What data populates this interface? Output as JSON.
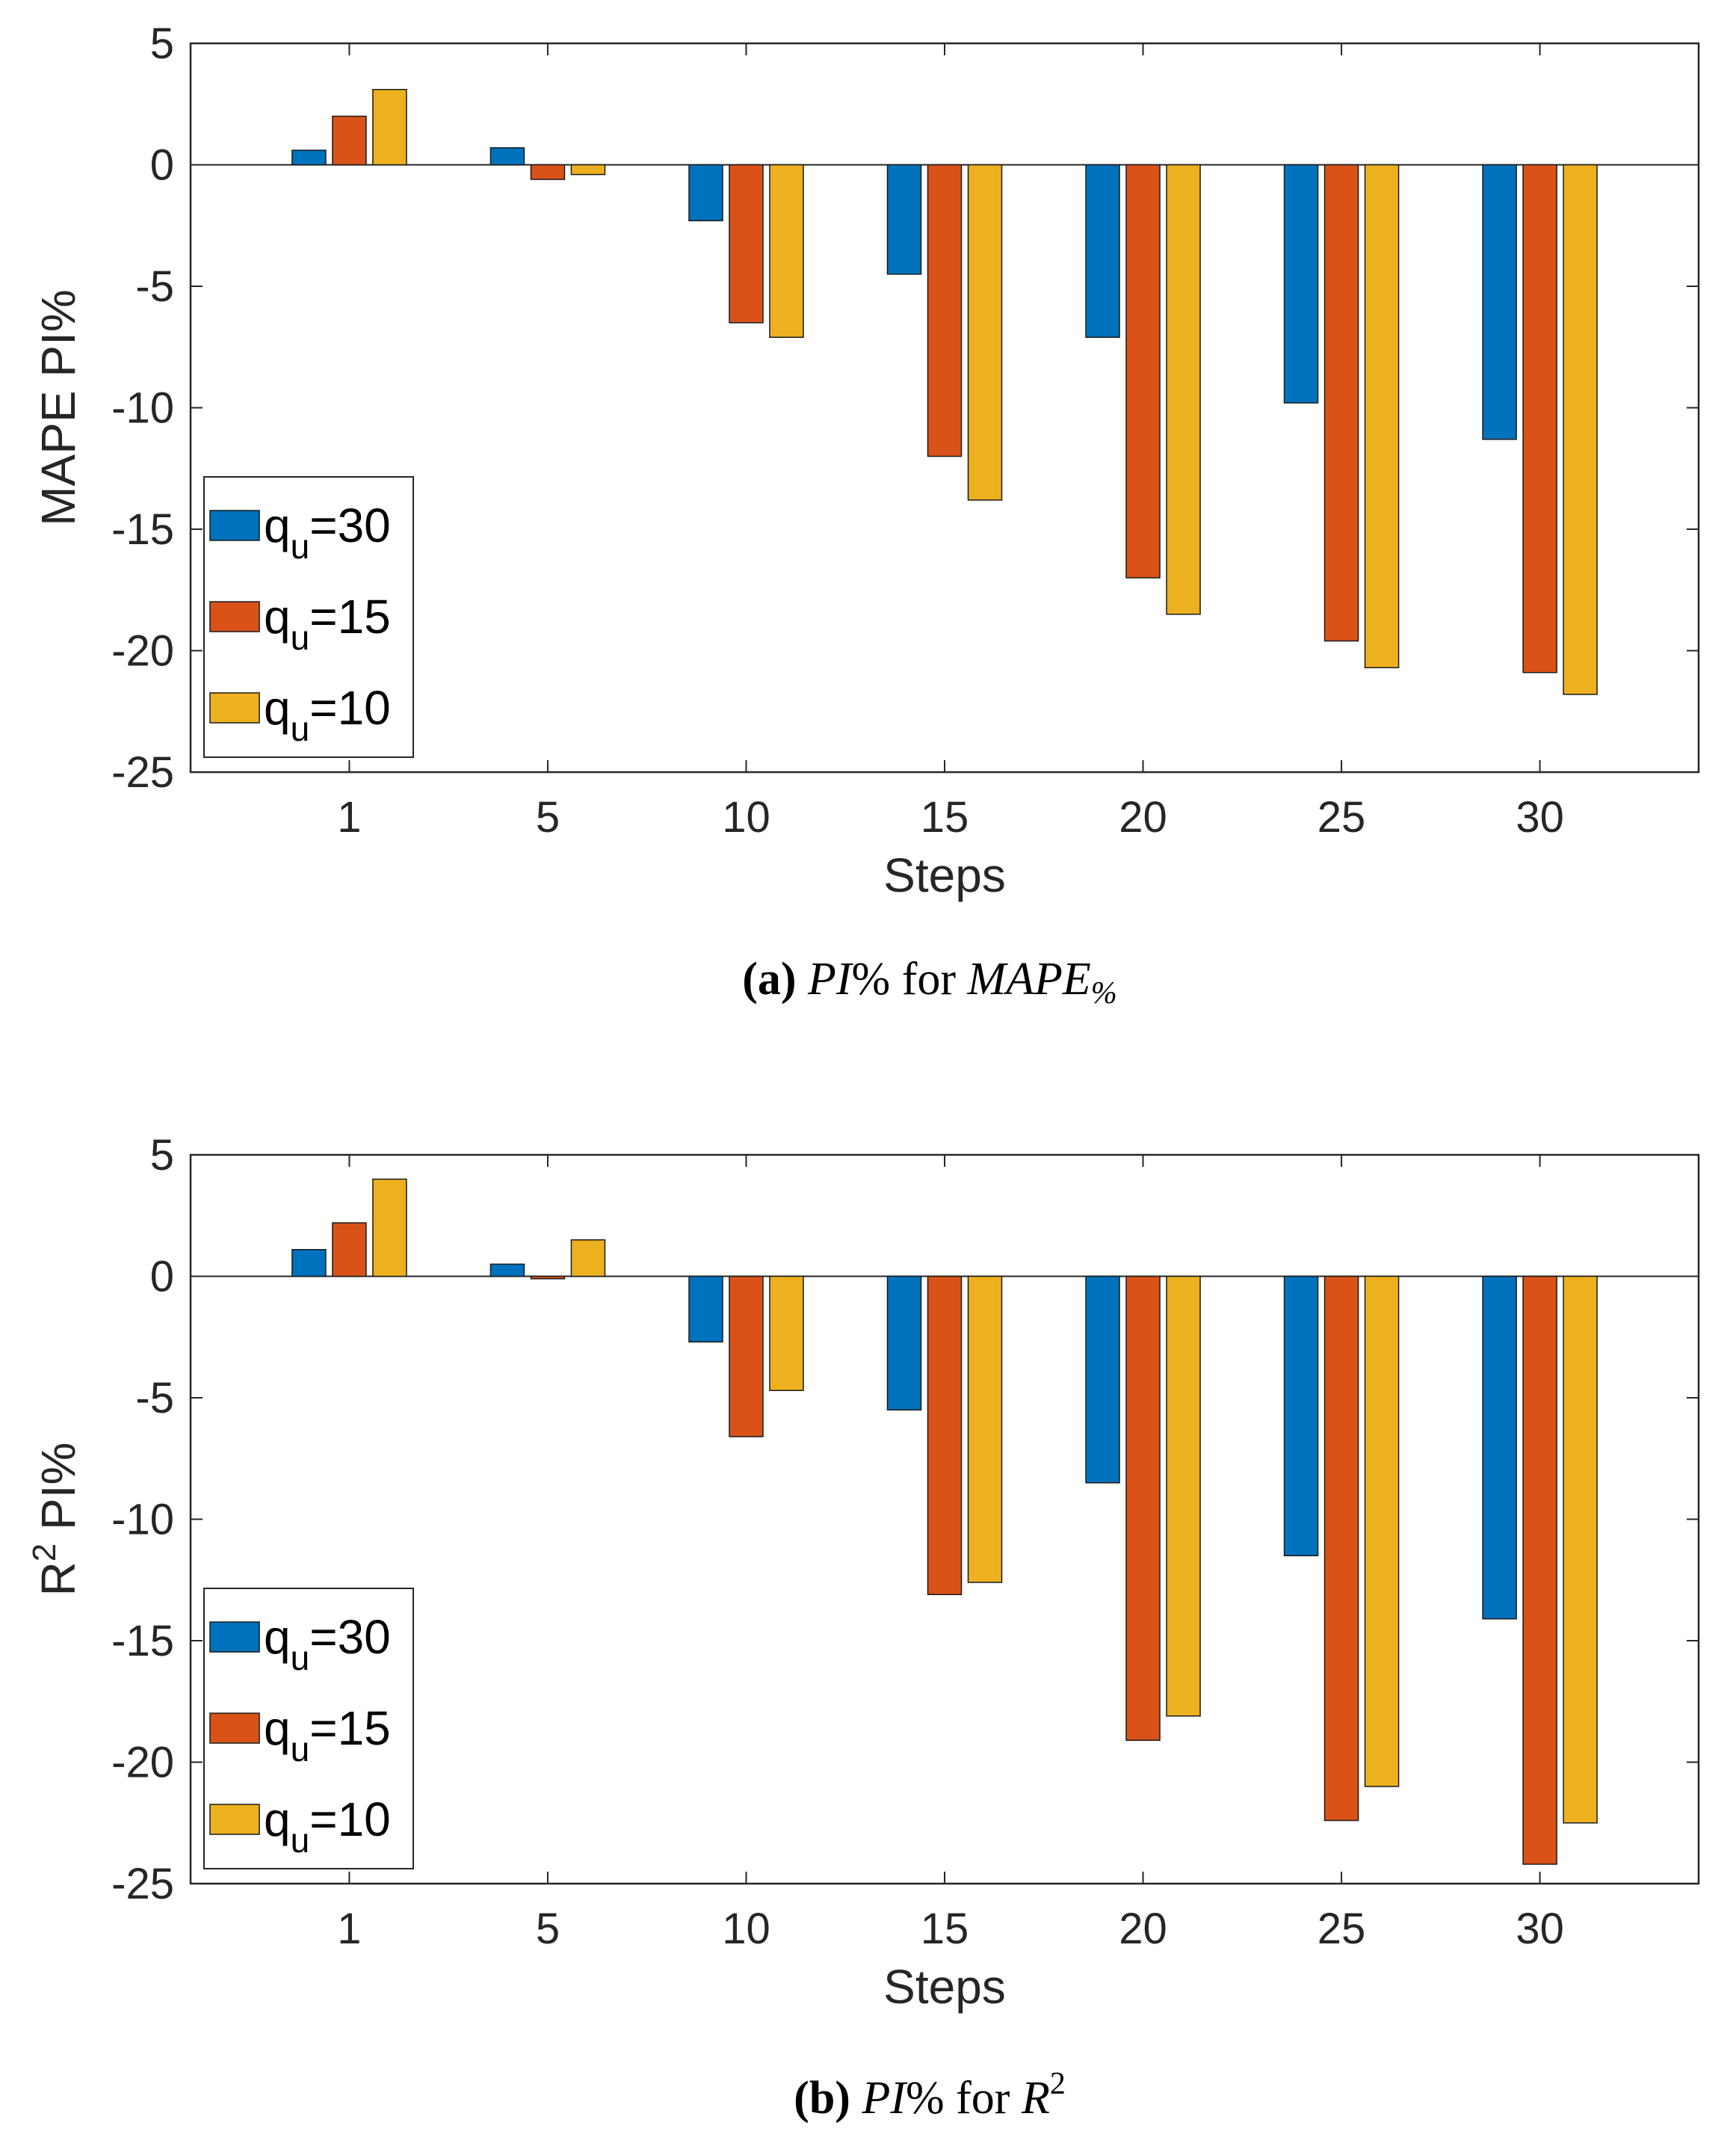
{
  "chart_data": [
    {
      "id": "a",
      "type": "bar",
      "categories": [
        "1",
        "5",
        "10",
        "15",
        "20",
        "25",
        "30"
      ],
      "xlabel": "Steps",
      "ylabel": "MAPE PI%",
      "ylabel_parts": {
        "main": "MAPE PI%",
        "sup": ""
      },
      "ylim": [
        -25,
        5
      ],
      "yticks": [
        5,
        0,
        -5,
        -10,
        -15,
        -20,
        -25
      ],
      "legend_position": "bottom-left",
      "series": [
        {
          "name": "q_u=30",
          "label_main": "q",
          "label_sub": "u",
          "label_tail": "=30",
          "color": "#0072BD",
          "values": [
            0.6,
            0.7,
            -2.3,
            -4.5,
            -7.1,
            -9.8,
            -11.3
          ]
        },
        {
          "name": "q_u=15",
          "label_main": "q",
          "label_sub": "u",
          "label_tail": "=15",
          "color": "#D95319",
          "values": [
            2.0,
            -0.6,
            -6.5,
            -12.0,
            -17.0,
            -19.6,
            -20.9
          ]
        },
        {
          "name": "q_u=10",
          "label_main": "q",
          "label_sub": "u",
          "label_tail": "=10",
          "color": "#EDB120",
          "values": [
            3.1,
            -0.4,
            -7.1,
            -13.8,
            -18.5,
            -20.7,
            -21.8
          ]
        }
      ],
      "caption": {
        "label": "(a)",
        "pi": "PI",
        "pct": "%",
        "for": "for",
        "metric": "MAPE",
        "metric_sub": "%"
      }
    },
    {
      "id": "b",
      "type": "bar",
      "categories": [
        "1",
        "5",
        "10",
        "15",
        "20",
        "25",
        "30"
      ],
      "xlabel": "Steps",
      "ylabel": "R2 PI%",
      "ylabel_parts": {
        "main": "R",
        "sup": "2",
        "tail": " PI%"
      },
      "ylim": [
        -25,
        5
      ],
      "yticks": [
        5,
        0,
        -5,
        -10,
        -15,
        -20,
        -25
      ],
      "legend_position": "bottom-left",
      "series": [
        {
          "name": "q_u=30",
          "label_main": "q",
          "label_sub": "u",
          "label_tail": "=30",
          "color": "#0072BD",
          "values": [
            1.1,
            0.5,
            -2.7,
            -5.5,
            -8.5,
            -11.5,
            -14.1
          ]
        },
        {
          "name": "q_u=15",
          "label_main": "q",
          "label_sub": "u",
          "label_tail": "=15",
          "color": "#D95319",
          "values": [
            2.2,
            -0.1,
            -6.6,
            -13.1,
            -19.1,
            -22.4,
            -24.2
          ]
        },
        {
          "name": "q_u=10",
          "label_main": "q",
          "label_sub": "u",
          "label_tail": "=10",
          "color": "#EDB120",
          "values": [
            4.0,
            1.5,
            -4.7,
            -12.6,
            -18.1,
            -21.0,
            -22.5
          ]
        }
      ],
      "caption": {
        "label": "(b)",
        "pi": "PI",
        "pct": "%",
        "for": "for",
        "metric": "R",
        "metric_sup": "2"
      }
    }
  ]
}
